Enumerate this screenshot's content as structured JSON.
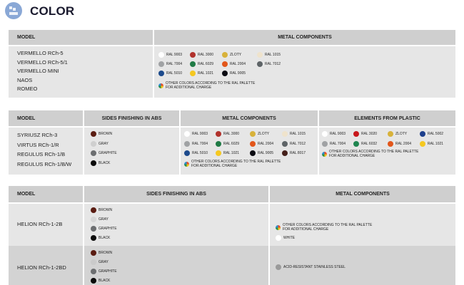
{
  "page": {
    "title": "COLOR",
    "icon": "color-palette-icon"
  },
  "table1": {
    "headers": [
      "MODEL",
      "METAL COMPONENTS"
    ],
    "models": [
      "VERMELLO RCh-5",
      "VERMELLO RCh-5/1",
      "VERMELLO MINI",
      "NAOS",
      "ROMEO"
    ],
    "metal": [
      {
        "label": "RAL 9003",
        "color": "#ffffff"
      },
      {
        "label": "RAL 3000",
        "color": "#b1322c"
      },
      {
        "label": "ZLOTY",
        "color": "#d8b23a"
      },
      {
        "label": "RAL 1015",
        "color": "#efe3cc"
      },
      {
        "label": "RAL 7004",
        "color": "#a0a2a4"
      },
      {
        "label": "RAL 6029",
        "color": "#1f7a45"
      },
      {
        "label": "RAL 2004",
        "color": "#e2561a"
      },
      {
        "label": "RAL 7012",
        "color": "#5e6467"
      },
      {
        "label": "RAL 5010",
        "color": "#1c4a8c"
      },
      {
        "label": "RAL 1021",
        "color": "#f5c820"
      },
      {
        "label": "RAL 9005",
        "color": "#0a0a12"
      }
    ],
    "other": [
      "OTHER COLORS ACCORDING TO THE RAL PALETTE",
      "FOR ADDITIONAL CHARGE"
    ]
  },
  "table2": {
    "headers": [
      "MODEL",
      "SIDES FINISHING IN ABS",
      "METAL COMPONENTS",
      "ELEMENTS FROM PLASTIC"
    ],
    "models": [
      "SYRIUSZ RCh-3",
      "VIRTUS RCh-1/R",
      "REGULUS RCh-1/B",
      "REGULUS RCh-1/B/W"
    ],
    "sides": [
      {
        "label": "BROWN",
        "color": "#5a1c12"
      },
      {
        "label": "GRAY",
        "color": "#cfcfcf"
      },
      {
        "label": "GRAPHITE",
        "color": "#6c6e70"
      },
      {
        "label": "BLACK",
        "color": "#0a0a0a"
      }
    ],
    "metal": [
      {
        "label": "RAL 9003",
        "color": "#ffffff"
      },
      {
        "label": "RAL 3000",
        "color": "#b1322c"
      },
      {
        "label": "ZLOTY",
        "color": "#d8b23a"
      },
      {
        "label": "RAL 1015",
        "color": "#efe3cc"
      },
      {
        "label": "RAL 7004",
        "color": "#a0a2a4"
      },
      {
        "label": "RAL 6029",
        "color": "#1f7a45"
      },
      {
        "label": "RAL 2004",
        "color": "#e2561a"
      },
      {
        "label": "RAL 7012",
        "color": "#5e6467"
      },
      {
        "label": "RAL 5010",
        "color": "#1c4a8c"
      },
      {
        "label": "RAL 1021",
        "color": "#f5c820"
      },
      {
        "label": "RAL 9005",
        "color": "#0a0a12"
      },
      {
        "label": "RAL 8017",
        "color": "#45201a"
      }
    ],
    "plastic": [
      {
        "label": "RAL 9003",
        "color": "#ffffff"
      },
      {
        "label": "RAL 3020",
        "color": "#c8171c"
      },
      {
        "label": "ZLOTY",
        "color": "#d8b23a"
      },
      {
        "label": "RAL 5002",
        "color": "#1d3f8c"
      },
      {
        "label": "RAL 7004",
        "color": "#a0a2a4"
      },
      {
        "label": "RAL 6032",
        "color": "#1f8650"
      },
      {
        "label": "RAL 2004",
        "color": "#e2561a"
      },
      {
        "label": "RAL 1021",
        "color": "#f5c820"
      }
    ],
    "other": [
      "OTHER COLORS ACCORDING TO THE RAL PALETTE",
      "FOR ADDITIONAL CHARGE"
    ]
  },
  "table3": {
    "headers": [
      "MODEL",
      "SIDES FINISHING IN ABS",
      "METAL COMPONENTS"
    ],
    "rows": [
      {
        "model": "HELION RCh-1-2B",
        "sides": [
          {
            "label": "BROWN",
            "color": "#5a1c12"
          },
          {
            "label": "GRAY",
            "color": "#d6d6d6"
          },
          {
            "label": "GRAPHITE",
            "color": "#6c6e70"
          },
          {
            "label": "BLACK",
            "color": "#0a0a0a"
          }
        ],
        "metal": {
          "label": "WHITE",
          "color": "#ffffff"
        },
        "other": [
          "OTHER COLORS ACCORDING TO THE RAL PALETTE",
          "FOR ADDITIONAL CHARGE"
        ]
      },
      {
        "model": "HELION RCh-1-2BD",
        "sides": [
          {
            "label": "BROWN",
            "color": "#5a1c12"
          },
          {
            "label": "GRAY",
            "color": "#cacaca"
          },
          {
            "label": "GRAPHITE",
            "color": "#6c6e70"
          },
          {
            "label": "BLACK",
            "color": "#0a0a0a"
          }
        ],
        "metal": {
          "label": "ACID-RESISTANT STAINLESS STEEL",
          "color": "#9a9a9a"
        }
      }
    ]
  }
}
